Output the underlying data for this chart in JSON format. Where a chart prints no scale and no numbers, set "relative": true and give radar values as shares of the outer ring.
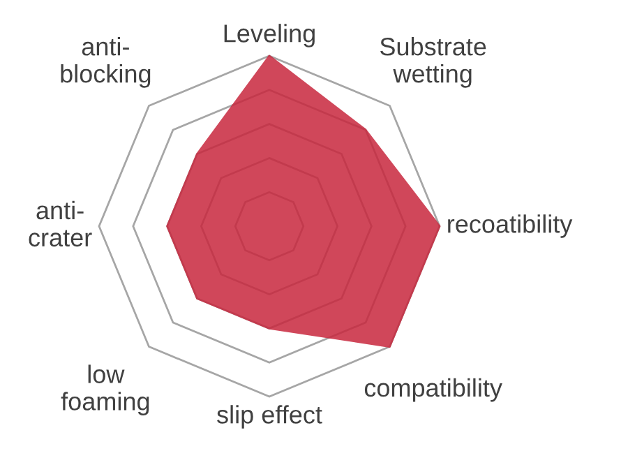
{
  "chart_data": {
    "type": "radar",
    "relative": true,
    "grid": true,
    "categories": [
      "Leveling",
      "Substrate\nwetting",
      "recoatibility",
      "compatibility",
      "slip effect",
      "low\nfoaming",
      "anti-\ncrater",
      "anti-\nblocking"
    ],
    "series": [
      {
        "color": "#c8283e",
        "values": [
          1.0,
          0.8,
          1.0,
          1.0,
          0.6,
          0.6,
          0.6,
          0.6
        ]
      }
    ]
  }
}
